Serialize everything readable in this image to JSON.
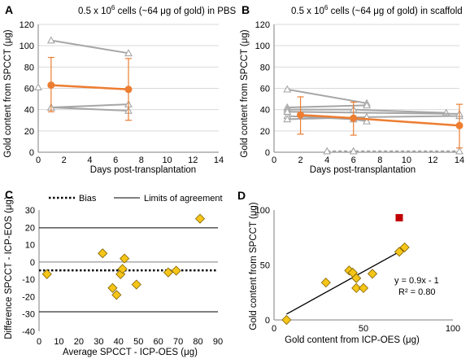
{
  "chart_data": [
    {
      "panel": "A",
      "type": "line",
      "title_main": "0.5 x 10",
      "title_sup": "6",
      "title_rest": " cells (~64 μg of gold) in PBS",
      "xlabel": "Days post-transplantation",
      "ylabel": "Gold content from SPCCT (μg)",
      "xlim": [
        0,
        14
      ],
      "ylim": [
        0,
        120
      ],
      "xticks": [
        0,
        2,
        4,
        6,
        8,
        10,
        12,
        14
      ],
      "yticks": [
        0,
        20,
        40,
        60,
        80,
        100,
        120
      ],
      "grey_color": "#a6a6a6",
      "mean_color": "#ed7d31",
      "individual_series": [
        {
          "x": [
            1,
            7
          ],
          "y": [
            105,
            93
          ]
        },
        {
          "x": [
            1,
            7
          ],
          "y": [
            42,
            45
          ]
        },
        {
          "x": [
            1,
            7
          ],
          "y": [
            42,
            39
          ]
        },
        {
          "x": [
            0
          ],
          "y": [
            61
          ]
        }
      ],
      "mean_series": {
        "x": [
          1,
          7
        ],
        "y": [
          63,
          59
        ],
        "err_low": [
          38,
          30
        ],
        "err_high": [
          89,
          88
        ]
      }
    },
    {
      "panel": "B",
      "type": "line",
      "title_main": "0.5 x 10",
      "title_sup": "6",
      "title_rest": " cells (~64 μg of gold) in scaffold",
      "xlabel": "Days post-transplantation",
      "ylabel": "Gold content from SPCCT (μg)",
      "xlim": [
        0,
        14
      ],
      "ylim": [
        0,
        120
      ],
      "xticks": [
        0,
        2,
        4,
        6,
        8,
        10,
        12,
        14
      ],
      "yticks": [
        0,
        20,
        40,
        60,
        80,
        100,
        120
      ],
      "grey_color": "#a6a6a6",
      "mean_color": "#ed7d31",
      "individual_series": [
        {
          "x": [
            1,
            7
          ],
          "y": [
            59,
            46
          ]
        },
        {
          "x": [
            1,
            7
          ],
          "y": [
            42,
            44
          ]
        },
        {
          "x": [
            1,
            6,
            13
          ],
          "y": [
            40,
            40,
            37
          ]
        },
        {
          "x": [
            1,
            6,
            7
          ],
          "y": [
            34,
            31,
            29
          ]
        },
        {
          "x": [
            1,
            7,
            14
          ],
          "y": [
            31,
            33,
            34
          ]
        },
        {
          "x": [
            1,
            14
          ],
          "y": [
            38,
            36
          ]
        },
        {
          "x": [
            4,
            6,
            14
          ],
          "y": [
            1,
            1,
            1
          ],
          "dashed": true
        }
      ],
      "mean_series": {
        "x": [
          2,
          6,
          14
        ],
        "y": [
          35,
          32,
          25
        ],
        "err_low": [
          17,
          16,
          4
        ],
        "err_high": [
          52,
          47,
          45
        ]
      }
    },
    {
      "panel": "C",
      "type": "scatter",
      "xlabel": "Average SPCCT - ICP-OES (μg)",
      "ylabel": "Difference SPCCT - ICP-EOS (μg)",
      "xlim": [
        0,
        90
      ],
      "ylim": [
        -40,
        30
      ],
      "xticks": [
        0,
        10,
        20,
        30,
        40,
        50,
        60,
        70,
        80,
        90
      ],
      "yticks": [
        -40,
        -30,
        -20,
        -10,
        0,
        10,
        20,
        30
      ],
      "legend": [
        "Bias",
        "Limits of agreement"
      ],
      "bias": -4.8,
      "limits_of_agreement": [
        19.7,
        -28.7
      ],
      "marker_color": "#f5c518",
      "points": [
        {
          "x": 4,
          "y": -7
        },
        {
          "x": 32,
          "y": 5
        },
        {
          "x": 37,
          "y": -15
        },
        {
          "x": 39,
          "y": -19
        },
        {
          "x": 41,
          "y": -7
        },
        {
          "x": 42,
          "y": -4
        },
        {
          "x": 43,
          "y": 2
        },
        {
          "x": 49,
          "y": -13
        },
        {
          "x": 65,
          "y": -6
        },
        {
          "x": 69,
          "y": -5
        },
        {
          "x": 81,
          "y": 25
        }
      ]
    },
    {
      "panel": "D",
      "type": "scatter",
      "xlabel": "Gold content from ICP-OES (μg)",
      "ylabel": "Gold content from SPCCT (μg)",
      "xlim": [
        0,
        100
      ],
      "ylim": [
        0,
        100
      ],
      "xticks": [
        0,
        50,
        100
      ],
      "yticks": [
        0,
        50,
        100
      ],
      "equation": "y = 0.9x - 1",
      "r_squared": "R² = 0.80",
      "fit": {
        "slope": 0.9,
        "intercept": -1,
        "x_range": [
          7,
          73
        ]
      },
      "marker_color": "#f5c518",
      "outlier_color": "#c00000",
      "points": [
        {
          "x": 7,
          "y": 0
        },
        {
          "x": 29,
          "y": 34
        },
        {
          "x": 42,
          "y": 45
        },
        {
          "x": 44,
          "y": 43
        },
        {
          "x": 46,
          "y": 38
        },
        {
          "x": 46,
          "y": 29
        },
        {
          "x": 50,
          "y": 29
        },
        {
          "x": 55,
          "y": 42
        },
        {
          "x": 70,
          "y": 62
        },
        {
          "x": 73,
          "y": 66
        }
      ],
      "outlier": {
        "x": 70,
        "y": 93
      }
    }
  ]
}
